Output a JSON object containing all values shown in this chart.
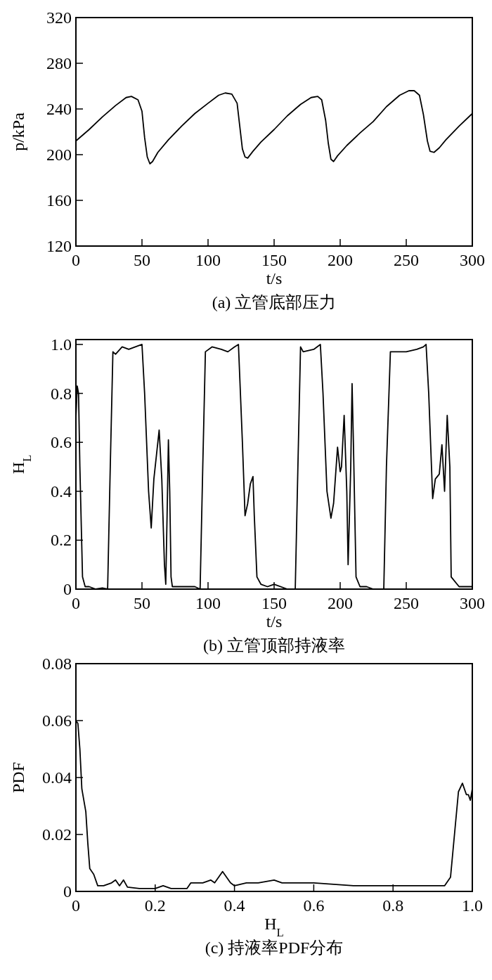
{
  "chart_data": [
    {
      "type": "line",
      "xlabel": "t/s",
      "ylabel": "p/kPa",
      "annotations": [
        "(a) 立管底部压力"
      ],
      "xlim": [
        0,
        300
      ],
      "ylim": [
        120,
        320
      ],
      "xticks": [
        0,
        50,
        100,
        150,
        200,
        250,
        300
      ],
      "yticks": [
        120,
        160,
        200,
        240,
        280,
        320
      ],
      "grid": false,
      "marker": "none",
      "line_style": "solid",
      "series": [
        {
          "color": "#000000",
          "x": [
            0,
            10,
            20,
            30,
            38,
            42,
            47,
            50,
            52,
            54,
            56,
            58,
            62,
            70,
            80,
            90,
            100,
            108,
            113,
            118,
            122,
            124,
            126,
            128,
            130,
            134,
            140,
            150,
            160,
            170,
            178,
            183,
            186,
            189,
            191,
            193,
            195,
            198,
            205,
            215,
            225,
            235,
            245,
            252,
            256,
            260,
            263,
            266,
            268,
            271,
            275,
            280,
            290,
            300
          ],
          "values": [
            212,
            222,
            233,
            243,
            250,
            251,
            248,
            238,
            215,
            198,
            192,
            194,
            202,
            213,
            225,
            236,
            245,
            252,
            254,
            253,
            245,
            225,
            205,
            198,
            197,
            203,
            211,
            222,
            234,
            244,
            250,
            251,
            248,
            230,
            210,
            196,
            194,
            199,
            208,
            219,
            229,
            242,
            252,
            256,
            256,
            252,
            235,
            212,
            203,
            202,
            206,
            213,
            225,
            236
          ]
        }
      ]
    },
    {
      "type": "line",
      "xlabel": "t/s",
      "ylabel": "H$_{L}$",
      "annotations": [
        "(b) 立管顶部持液率"
      ],
      "xlim": [
        0,
        300
      ],
      "ylim": [
        0,
        1.02
      ],
      "xticks": [
        0,
        50,
        100,
        150,
        200,
        250,
        300
      ],
      "yticks": [
        {
          "value": 0,
          "label": "0"
        },
        {
          "value": 0.2,
          "label": "0.2"
        },
        {
          "value": 0.4,
          "label": "0.4"
        },
        {
          "value": 0.6,
          "label": "0.6"
        },
        {
          "value": 0.8,
          "label": "0.8"
        },
        {
          "value": 1.0,
          "label": "1.0"
        }
      ],
      "grid": false,
      "marker": "none",
      "line_style": "solid",
      "series": [
        {
          "color": "#000000",
          "x": [
            0,
            1,
            2,
            3,
            5,
            7,
            10,
            15,
            20,
            24,
            26,
            28,
            30,
            35,
            40,
            45,
            50,
            52,
            55,
            57,
            59,
            61,
            63,
            65,
            67,
            68,
            69,
            70,
            71,
            72,
            73,
            80,
            90,
            94,
            96,
            98,
            103,
            110,
            115,
            120,
            123,
            126,
            128,
            130,
            132,
            134,
            135,
            137,
            140,
            145,
            150,
            160,
            166,
            168,
            170,
            172,
            180,
            185,
            187,
            190,
            193,
            195,
            198,
            200,
            201,
            203,
            205,
            206,
            208,
            209,
            210,
            212,
            215,
            220,
            225,
            233,
            235,
            238,
            242,
            250,
            258,
            263,
            265,
            267,
            270,
            272,
            275,
            277,
            279,
            281,
            283,
            284,
            290,
            300
          ],
          "values": [
            0.7,
            0.83,
            0.8,
            0.5,
            0.05,
            0.01,
            0.01,
            0,
            0.005,
            0,
            0.5,
            0.97,
            0.96,
            0.99,
            0.98,
            0.99,
            1.0,
            0.8,
            0.4,
            0.25,
            0.45,
            0.55,
            0.65,
            0.45,
            0.1,
            0.02,
            0.3,
            0.61,
            0.4,
            0.05,
            0.01,
            0.01,
            0.01,
            0,
            0.5,
            0.97,
            0.99,
            0.98,
            0.97,
            0.99,
            1.0,
            0.6,
            0.3,
            0.35,
            0.43,
            0.46,
            0.3,
            0.05,
            0.02,
            0.01,
            0.02,
            0,
            0,
            0.5,
            0.99,
            0.97,
            0.98,
            1.0,
            0.8,
            0.4,
            0.29,
            0.35,
            0.58,
            0.48,
            0.5,
            0.71,
            0.4,
            0.1,
            0.5,
            0.84,
            0.6,
            0.05,
            0.01,
            0.01,
            0,
            0,
            0.5,
            0.97,
            0.97,
            0.97,
            0.98,
            0.99,
            1.0,
            0.8,
            0.37,
            0.45,
            0.47,
            0.59,
            0.4,
            0.71,
            0.5,
            0.05,
            0.01,
            0.01
          ]
        }
      ]
    },
    {
      "type": "line",
      "xlabel": "H$_{L}$",
      "ylabel": "PDF",
      "annotations": [
        "(c) 持液率PDF分布"
      ],
      "xlim": [
        0,
        1
      ],
      "ylim": [
        0,
        0.08
      ],
      "xticks": [
        {
          "value": 0,
          "label": "0"
        },
        {
          "value": 0.2,
          "label": "0.2"
        },
        {
          "value": 0.4,
          "label": "0.4"
        },
        {
          "value": 0.6,
          "label": "0.6"
        },
        {
          "value": 0.8,
          "label": "0.8"
        },
        {
          "value": 1,
          "label": "1.0"
        }
      ],
      "yticks": [
        {
          "value": 0,
          "label": "0"
        },
        {
          "value": 0.02,
          "label": "0.02"
        },
        {
          "value": 0.04,
          "label": "0.04"
        },
        {
          "value": 0.06,
          "label": "0.06"
        },
        {
          "value": 0.08,
          "label": "0.08"
        }
      ],
      "grid": false,
      "marker": "none",
      "line_style": "solid",
      "series": [
        {
          "color": "#000000",
          "x": [
            0,
            0.005,
            0.01,
            0.015,
            0.025,
            0.03,
            0.035,
            0.045,
            0.055,
            0.07,
            0.09,
            0.1,
            0.11,
            0.12,
            0.13,
            0.16,
            0.2,
            0.22,
            0.24,
            0.28,
            0.29,
            0.32,
            0.34,
            0.35,
            0.37,
            0.39,
            0.4,
            0.43,
            0.46,
            0.5,
            0.52,
            0.6,
            0.7,
            0.8,
            0.85,
            0.9,
            0.93,
            0.945,
            0.955,
            0.965,
            0.975,
            0.985,
            0.99,
            0.995,
            1.0
          ],
          "values": [
            0.06,
            0.059,
            0.05,
            0.036,
            0.028,
            0.017,
            0.008,
            0.006,
            0.002,
            0.002,
            0.003,
            0.004,
            0.002,
            0.004,
            0.0015,
            0.001,
            0.001,
            0.002,
            0.001,
            0.001,
            0.003,
            0.003,
            0.004,
            0.003,
            0.007,
            0.003,
            0.002,
            0.003,
            0.003,
            0.004,
            0.003,
            0.003,
            0.002,
            0.002,
            0.002,
            0.002,
            0.002,
            0.005,
            0.02,
            0.035,
            0.038,
            0.034,
            0.034,
            0.032,
            0.036
          ]
        }
      ]
    }
  ]
}
